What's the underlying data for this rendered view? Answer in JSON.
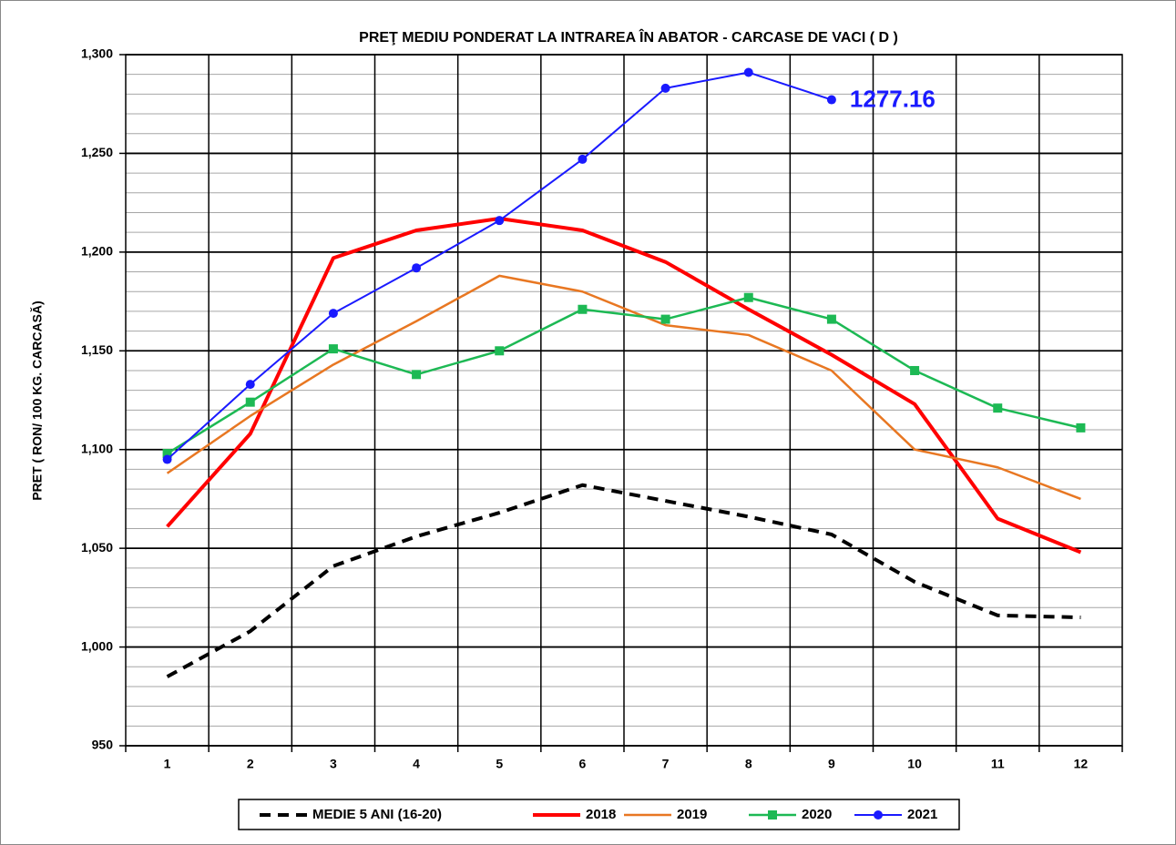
{
  "chart_data": {
    "type": "line",
    "title": "PREŢ MEDIU PONDERAT LA INTRAREA ÎN ABATOR - CARCASE DE VACI ( D )",
    "y_label": "PRET ( RON/ 100 KG. CARCASĂ)",
    "categories": [
      "1",
      "2",
      "3",
      "4",
      "5",
      "6",
      "7",
      "8",
      "9",
      "10",
      "11",
      "12"
    ],
    "ylim": [
      950,
      1300
    ],
    "yticks": [
      {
        "value": 950,
        "label": "950"
      },
      {
        "value": 1000,
        "label": "1,000"
      },
      {
        "value": 1050,
        "label": "1,050"
      },
      {
        "value": 1100,
        "label": "1,100"
      },
      {
        "value": 1150,
        "label": "1,150"
      },
      {
        "value": 1200,
        "label": "1,200"
      },
      {
        "value": 1250,
        "label": "1,250"
      },
      {
        "value": 1300,
        "label": "1,300"
      }
    ],
    "grid": true,
    "minor_grid": true,
    "legend": "bottom",
    "series": [
      {
        "name": "MEDIE 5 ANI (16-20)",
        "color": "#000000",
        "dashed": true,
        "width": 4,
        "marker": "none",
        "values": [
          985,
          1008,
          1041,
          1056,
          1068,
          1082,
          1074,
          1066,
          1057,
          1033,
          1016,
          1015
        ]
      },
      {
        "name": "2018",
        "color": "#ff0000",
        "width": 4,
        "marker": "none",
        "values": [
          1061,
          1108,
          1197,
          1211,
          1217,
          1211,
          1195,
          1171,
          1148,
          1123,
          1065,
          1048
        ]
      },
      {
        "name": "2019",
        "color": "#e87722",
        "width": 2.5,
        "marker": "none",
        "values": [
          1088,
          1117,
          1143,
          1165,
          1188,
          1180,
          1163,
          1158,
          1140,
          1100,
          1091,
          1075
        ]
      },
      {
        "name": "2020",
        "color": "#1db954",
        "width": 2.5,
        "marker": "square",
        "values": [
          1098,
          1124,
          1151,
          1138,
          1150,
          1171,
          1166,
          1177,
          1166,
          1140,
          1121,
          1111
        ]
      },
      {
        "name": "2021",
        "color": "#1a1aff",
        "width": 2,
        "marker": "circle",
        "values": [
          1095,
          1133,
          1169,
          1192,
          1216,
          1247,
          1283,
          1291,
          1277.16,
          null,
          null,
          null
        ]
      }
    ],
    "annotation": {
      "text": "1277.16",
      "color": "#1a1aff"
    }
  }
}
